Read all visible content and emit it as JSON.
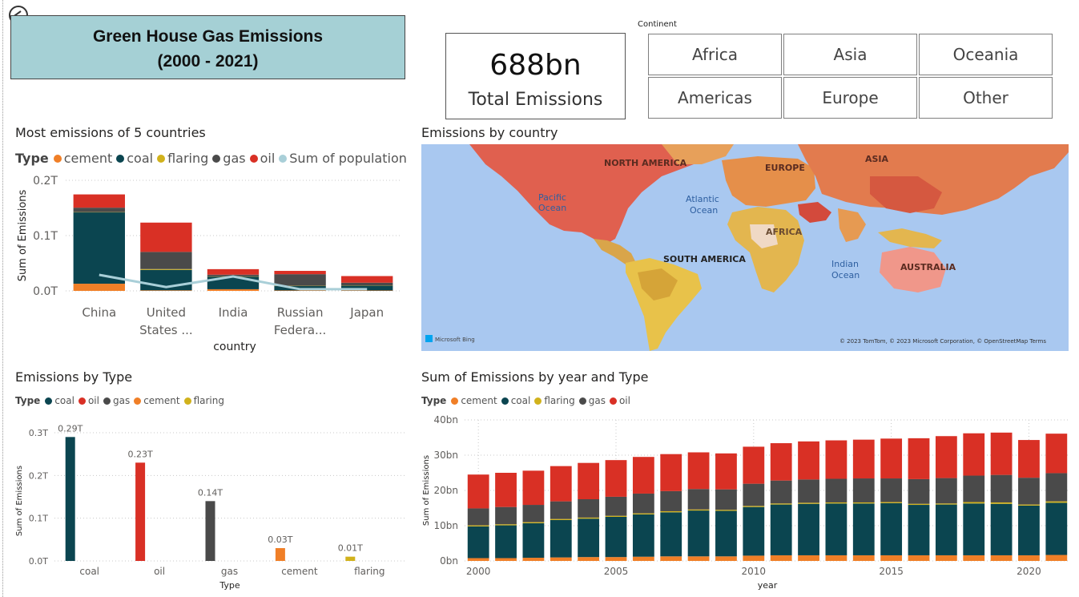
{
  "header": {
    "title_line1": "Green House Gas Emissions",
    "title_line2": "(2000 - 2021)"
  },
  "kpi": {
    "value": "688bn",
    "label": "Total Emissions"
  },
  "slicer": {
    "title": "Continent",
    "options": [
      "Africa",
      "Asia",
      "Oceania",
      "Americas",
      "Europe",
      "Other"
    ]
  },
  "colors": {
    "cement": "#f07f27",
    "coal": "#0b4550",
    "flaring": "#d1b21c",
    "gas": "#4a4a4a",
    "oil": "#d93025",
    "population": "#a9cfd8",
    "ocean": "#a9c8f0"
  },
  "top_countries": {
    "title": "Most emissions of 5 countries",
    "legend_title": "Type",
    "legend": [
      {
        "label": "cement",
        "color": "#f07f27"
      },
      {
        "label": "coal",
        "color": "#0b4550"
      },
      {
        "label": "flaring",
        "color": "#d1b21c"
      },
      {
        "label": "gas",
        "color": "#4a4a4a"
      },
      {
        "label": "oil",
        "color": "#d93025"
      },
      {
        "label": "Sum of population",
        "color": "#a9cfd8"
      }
    ]
  },
  "map": {
    "title": "Emissions by country",
    "labels": {
      "north_america": "NORTH AMERICA",
      "europe": "EUROPE",
      "asia": "ASIA",
      "pacific1": "Pacific",
      "pacific2": "Ocean",
      "atlantic1": "Atlantic",
      "atlantic2": "Ocean",
      "africa": "AFRICA",
      "south_america": "SOUTH AMERICA",
      "indian1": "Indian",
      "indian2": "Ocean",
      "australia": "AUSTRALIA"
    },
    "logo": "Microsoft Bing",
    "attribution": "© 2023 TomTom, © 2023 Microsoft Corporation, © OpenStreetMap  Terms"
  },
  "by_type": {
    "title": "Emissions by Type",
    "legend_title": "Type",
    "legend": [
      {
        "label": "coal",
        "color": "#0b4550"
      },
      {
        "label": "oil",
        "color": "#d93025"
      },
      {
        "label": "gas",
        "color": "#4a4a4a"
      },
      {
        "label": "cement",
        "color": "#f07f27"
      },
      {
        "label": "flaring",
        "color": "#d1b21c"
      }
    ]
  },
  "by_year": {
    "title": "Sum of Emissions by year and Type",
    "legend_title": "Type",
    "legend": [
      {
        "label": "cement",
        "color": "#f07f27"
      },
      {
        "label": "coal",
        "color": "#0b4550"
      },
      {
        "label": "flaring",
        "color": "#d1b21c"
      },
      {
        "label": "gas",
        "color": "#4a4a4a"
      },
      {
        "label": "oil",
        "color": "#d93025"
      }
    ]
  },
  "chart_data": [
    {
      "id": "top_countries",
      "type": "bar",
      "stacked": true,
      "categories": [
        "China",
        "United States ...",
        "India",
        "Russian Federa...",
        "Japan"
      ],
      "category_lines": [
        [
          "China"
        ],
        [
          "United",
          "States ..."
        ],
        [
          "India"
        ],
        [
          "Russian",
          "Federa..."
        ],
        [
          "Japan"
        ]
      ],
      "series": [
        {
          "name": "cement",
          "color": "#f07f27",
          "values": [
            0.013,
            0.001,
            0.003,
            0.0008,
            0.0007
          ]
        },
        {
          "name": "coal",
          "color": "#0b4550",
          "values": [
            0.129,
            0.037,
            0.023,
            0.008,
            0.009
          ]
        },
        {
          "name": "flaring",
          "color": "#d1b21c",
          "values": [
            0.0005,
            0.0015,
            0.0003,
            0.0004,
            0.0001
          ]
        },
        {
          "name": "gas",
          "color": "#4a4a4a",
          "values": [
            0.008,
            0.031,
            0.003,
            0.021,
            0.005
          ]
        },
        {
          "name": "oil",
          "color": "#d93025",
          "values": [
            0.024,
            0.053,
            0.01,
            0.006,
            0.012
          ]
        }
      ],
      "line_series": {
        "name": "Sum of population",
        "color": "#a9cfd8",
        "values": [
          0.029,
          0.007,
          0.026,
          0.003,
          0.003
        ]
      },
      "xlabel": "country",
      "ylabel": "Sum of Emissions",
      "yticks": [
        0,
        0.1,
        0.2
      ],
      "ytick_labels": [
        "0.0T",
        "0.1T",
        "0.2T"
      ],
      "ylim": [
        0,
        0.2
      ]
    },
    {
      "id": "by_type",
      "type": "bar",
      "categories": [
        "coal",
        "oil",
        "gas",
        "cement",
        "flaring"
      ],
      "values": [
        0.29,
        0.23,
        0.14,
        0.03,
        0.01
      ],
      "data_labels": [
        "0.29T",
        "0.23T",
        "0.14T",
        "0.03T",
        "0.01T"
      ],
      "colors": [
        "#0b4550",
        "#d93025",
        "#4a4a4a",
        "#f07f27",
        "#d1b21c"
      ],
      "xlabel": "Type",
      "ylabel": "Sum of Emissions",
      "yticks": [
        0,
        0.1,
        0.2,
        0.3
      ],
      "ytick_labels": [
        "0.0T",
        "0.1T",
        "0.2T",
        "0.3T"
      ],
      "ylim": [
        0,
        0.3
      ]
    },
    {
      "id": "by_year",
      "type": "bar",
      "stacked": true,
      "x": [
        2000,
        2001,
        2002,
        2003,
        2004,
        2005,
        2006,
        2007,
        2008,
        2009,
        2010,
        2011,
        2012,
        2013,
        2014,
        2015,
        2016,
        2017,
        2018,
        2019,
        2020,
        2021
      ],
      "series": [
        {
          "name": "cement",
          "color": "#f07f27",
          "values": [
            0.8,
            0.8,
            0.9,
            1.0,
            1.1,
            1.1,
            1.2,
            1.3,
            1.3,
            1.3,
            1.5,
            1.6,
            1.6,
            1.6,
            1.6,
            1.6,
            1.6,
            1.6,
            1.6,
            1.6,
            1.6,
            1.7
          ]
        },
        {
          "name": "coal",
          "color": "#0b4550",
          "values": [
            9.0,
            9.3,
            9.8,
            10.6,
            10.9,
            11.4,
            12.0,
            12.5,
            13.0,
            12.9,
            13.8,
            14.4,
            14.6,
            14.7,
            14.7,
            14.8,
            14.3,
            14.4,
            14.7,
            14.6,
            14.1,
            14.8
          ]
        },
        {
          "name": "flaring",
          "color": "#d1b21c",
          "values": [
            0.3,
            0.3,
            0.3,
            0.3,
            0.3,
            0.3,
            0.3,
            0.3,
            0.3,
            0.3,
            0.3,
            0.3,
            0.3,
            0.3,
            0.3,
            0.3,
            0.3,
            0.3,
            0.4,
            0.4,
            0.3,
            0.4
          ]
        },
        {
          "name": "gas",
          "color": "#4a4a4a",
          "values": [
            4.8,
            4.9,
            4.9,
            5.0,
            5.2,
            5.4,
            5.6,
            5.7,
            5.8,
            5.8,
            6.3,
            6.5,
            6.6,
            6.7,
            6.8,
            6.7,
            7.0,
            7.2,
            7.5,
            7.8,
            7.6,
            8.0
          ]
        },
        {
          "name": "oil",
          "color": "#d93025",
          "values": [
            9.6,
            9.7,
            9.7,
            10.0,
            10.3,
            10.4,
            10.4,
            10.5,
            10.4,
            10.2,
            10.5,
            10.6,
            10.8,
            10.9,
            11.0,
            11.3,
            11.6,
            11.9,
            12.0,
            12.0,
            10.7,
            11.2
          ]
        }
      ],
      "xticks": [
        2000,
        2005,
        2010,
        2015,
        2020
      ],
      "xlabel": "year",
      "ylabel": "Sum of Emissions",
      "yticks": [
        0,
        10,
        20,
        30,
        40
      ],
      "ytick_labels": [
        "0bn",
        "10bn",
        "20bn",
        "30bn",
        "40bn"
      ],
      "ylim": [
        0,
        40
      ]
    }
  ]
}
